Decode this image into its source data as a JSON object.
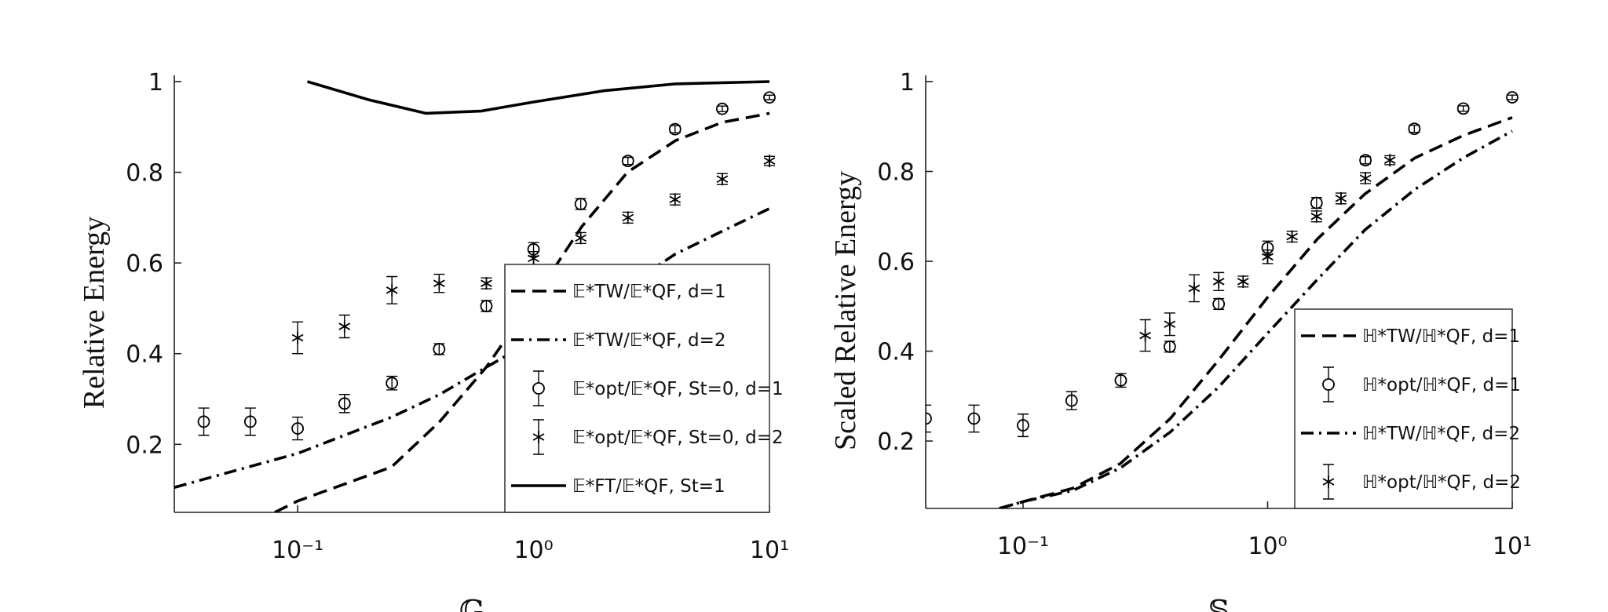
{
  "chart_data": [
    {
      "type": "line",
      "xlabel": "𝔾",
      "ylabel": "Relative Energy",
      "xscale": "log",
      "xlim": [
        0.03,
        10
      ],
      "ylim": [
        0.05,
        1
      ],
      "xticks": [
        {
          "value": 0.1,
          "label": "10⁻¹"
        },
        {
          "value": 1,
          "label": "10⁰"
        },
        {
          "value": 10,
          "label": "10¹"
        }
      ],
      "yticks": [
        0.2,
        0.4,
        0.6,
        0.8,
        1
      ],
      "legend": "lower right",
      "series": [
        {
          "name": "𝔼*TW/𝔼*QF, d=1",
          "color": "#000000",
          "style": "dash",
          "x": [
            0.08,
            0.1,
            0.25,
            0.4,
            0.63,
            1,
            1.6,
            2.5,
            4,
            6.3,
            10
          ],
          "values": [
            0.05,
            0.075,
            0.15,
            0.25,
            0.37,
            0.52,
            0.68,
            0.8,
            0.87,
            0.91,
            0.93
          ]
        },
        {
          "name": "𝔼*TW/𝔼*QF, d=2",
          "color": "#000000",
          "style": "dashdot",
          "x": [
            0.03,
            0.1,
            0.25,
            0.4,
            0.63,
            1,
            2.5,
            4,
            6.3,
            10
          ],
          "values": [
            0.105,
            0.18,
            0.26,
            0.31,
            0.37,
            0.43,
            0.55,
            0.62,
            0.67,
            0.72
          ]
        },
        {
          "name": "𝔼*opt/𝔼*QF, St=0, d=1",
          "color": "#000000",
          "style": "circle",
          "x": [
            0.04,
            0.063,
            0.1,
            0.158,
            0.251,
            0.398,
            0.631,
            1,
            1.585,
            2.512,
            3.98,
            6.31,
            10
          ],
          "values": [
            0.25,
            0.25,
            0.235,
            0.29,
            0.335,
            0.41,
            0.505,
            0.63,
            0.73,
            0.825,
            0.895,
            0.94,
            0.965
          ],
          "errors": [
            0.03,
            0.03,
            0.025,
            0.02,
            0.015,
            0.012,
            0.012,
            0.015,
            0.012,
            0.008,
            0.008,
            0.006,
            0.005
          ]
        },
        {
          "name": "𝔼*opt/𝔼*QF, St=0, d=2",
          "color": "#000000",
          "style": "star",
          "x": [
            0.1,
            0.158,
            0.251,
            0.398,
            0.631,
            1,
            1.585,
            2.512,
            3.98,
            6.31,
            10
          ],
          "values": [
            0.435,
            0.46,
            0.54,
            0.555,
            0.555,
            0.61,
            0.655,
            0.7,
            0.74,
            0.785,
            0.825
          ],
          "errors": [
            0.035,
            0.025,
            0.03,
            0.02,
            0.012,
            0.015,
            0.012,
            0.012,
            0.012,
            0.012,
            0.01
          ]
        },
        {
          "name": "𝔼*FT/𝔼*QF, St=1",
          "color": "#000000",
          "style": "solid",
          "x": [
            0.11,
            0.2,
            0.35,
            0.6,
            1,
            2,
            4,
            10
          ],
          "values": [
            1,
            0.96,
            0.93,
            0.935,
            0.955,
            0.98,
            0.995,
            1
          ]
        }
      ]
    },
    {
      "type": "line",
      "xlabel": "𝕊",
      "ylabel": "Scaled Relative Energy",
      "xscale": "log",
      "xlim": [
        0.04,
        10
      ],
      "ylim": [
        0.05,
        1
      ],
      "xticks": [
        {
          "value": 0.1,
          "label": "10⁻¹"
        },
        {
          "value": 1,
          "label": "10⁰"
        },
        {
          "value": 10,
          "label": "10¹"
        }
      ],
      "yticks": [
        0.2,
        0.4,
        0.6,
        0.8,
        1
      ],
      "legend": "lower right",
      "series": [
        {
          "name": "ℍ*TW/ℍ*QF, d=1",
          "color": "#000000",
          "style": "dash",
          "x": [
            0.08,
            0.1,
            0.16,
            0.25,
            0.4,
            0.63,
            1,
            1.6,
            2.5,
            4,
            6.3,
            10
          ],
          "values": [
            0.05,
            0.065,
            0.095,
            0.15,
            0.25,
            0.38,
            0.52,
            0.65,
            0.75,
            0.83,
            0.88,
            0.92
          ]
        },
        {
          "name": "ℍ*opt/ℍ*QF, d=1",
          "color": "#000000",
          "style": "circle",
          "x": [
            0.04,
            0.063,
            0.1,
            0.158,
            0.251,
            0.398,
            0.631,
            1,
            1.585,
            2.512,
            3.98,
            6.31,
            10
          ],
          "values": [
            0.25,
            0.25,
            0.235,
            0.29,
            0.335,
            0.41,
            0.505,
            0.63,
            0.73,
            0.825,
            0.895,
            0.94,
            0.965
          ],
          "errors": [
            0.03,
            0.03,
            0.025,
            0.02,
            0.015,
            0.012,
            0.012,
            0.015,
            0.012,
            0.008,
            0.008,
            0.006,
            0.005
          ]
        },
        {
          "name": "ℍ*TW/ℍ*QF, d=2",
          "color": "#000000",
          "style": "dashdot",
          "x": [
            0.08,
            0.1,
            0.16,
            0.25,
            0.4,
            0.63,
            1,
            1.6,
            2.5,
            4,
            6.3,
            10
          ],
          "values": [
            0.05,
            0.065,
            0.09,
            0.14,
            0.22,
            0.32,
            0.44,
            0.56,
            0.67,
            0.76,
            0.83,
            0.89
          ]
        },
        {
          "name": "ℍ*opt/ℍ*QF, d=2",
          "color": "#000000",
          "style": "star",
          "x": [
            0.316,
            0.398,
            0.501,
            0.631,
            0.794,
            1,
            1.259,
            1.585,
            1.995,
            2.512,
            3.162
          ],
          "values": [
            0.435,
            0.46,
            0.54,
            0.555,
            0.555,
            0.61,
            0.655,
            0.7,
            0.74,
            0.785,
            0.825
          ],
          "errors": [
            0.035,
            0.025,
            0.03,
            0.02,
            0.012,
            0.015,
            0.012,
            0.012,
            0.012,
            0.012,
            0.01
          ]
        }
      ]
    }
  ]
}
